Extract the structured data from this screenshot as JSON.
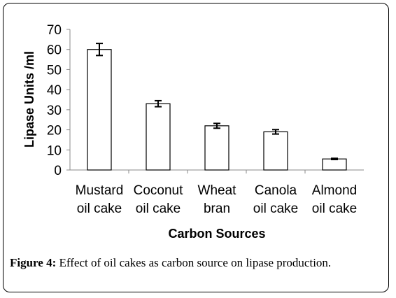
{
  "chart_data": {
    "type": "bar",
    "categories": [
      [
        "Mustard",
        "oil cake"
      ],
      [
        "Coconut",
        "oil cake"
      ],
      [
        "Wheat",
        "bran"
      ],
      [
        "Canola",
        "oil cake"
      ],
      [
        "Almond",
        "oil cake"
      ]
    ],
    "values": [
      60,
      33,
      22,
      19,
      5.5
    ],
    "errors": [
      3,
      1.5,
      1.2,
      1.1,
      0.3
    ],
    "ylabel": "Lipase Units /ml",
    "xlabel": "Carbon Sources",
    "ylim": [
      0,
      70
    ],
    "yticks": [
      0,
      10,
      20,
      30,
      40,
      50,
      60,
      70
    ],
    "bar_fill": "#ffffff",
    "bar_stroke": "#000000",
    "grid": false
  },
  "caption": {
    "label": "Figure 4:",
    "text": " Effect of oil cakes as carbon source on lipase production."
  }
}
